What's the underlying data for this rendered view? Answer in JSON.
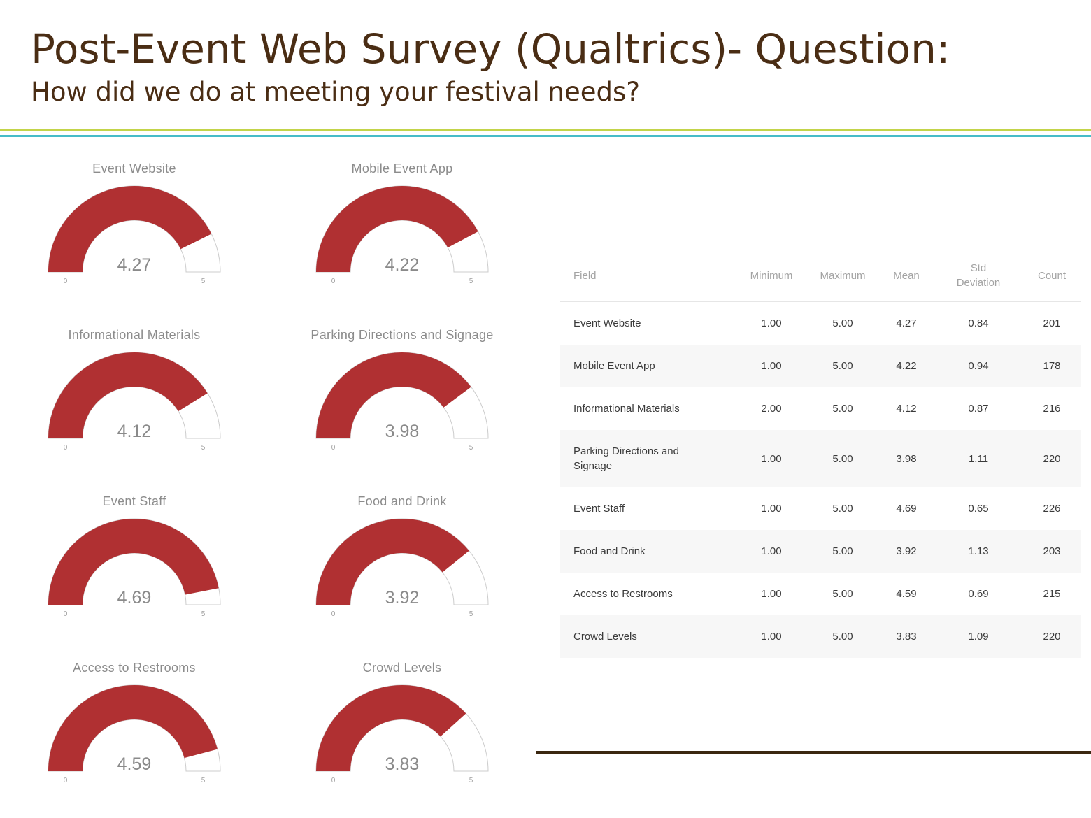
{
  "header": {
    "title": "Post-Event Web Survey (Qualtrics)- Question:",
    "subtitle": "How did we do at meeting your festival needs?"
  },
  "colors": {
    "gauge_fill": "#b03032",
    "gauge_track_stroke": "#cccccc",
    "title_text": "#4a2d14",
    "rule_green": "#c3d449",
    "rule_teal": "#47bcc8"
  },
  "chart_data": [
    {
      "type": "gauge",
      "gauges": [
        {
          "name": "Event Website",
          "value": 4.27,
          "min": 0,
          "max": 5,
          "value_label": "4.27",
          "min_label": "0",
          "max_label": "5"
        },
        {
          "name": "Mobile Event App",
          "value": 4.22,
          "min": 0,
          "max": 5,
          "value_label": "4.22",
          "min_label": "0",
          "max_label": "5"
        },
        {
          "name": "Informational Materials",
          "value": 4.12,
          "min": 0,
          "max": 5,
          "value_label": "4.12",
          "min_label": "0",
          "max_label": "5"
        },
        {
          "name": "Parking Directions and Signage",
          "value": 3.98,
          "min": 0,
          "max": 5,
          "value_label": "3.98",
          "min_label": "0",
          "max_label": "5"
        },
        {
          "name": "Event Staff",
          "value": 4.69,
          "min": 0,
          "max": 5,
          "value_label": "4.69",
          "min_label": "0",
          "max_label": "5"
        },
        {
          "name": "Food and Drink",
          "value": 3.92,
          "min": 0,
          "max": 5,
          "value_label": "3.92",
          "min_label": "0",
          "max_label": "5"
        },
        {
          "name": "Access to Restrooms",
          "value": 4.59,
          "min": 0,
          "max": 5,
          "value_label": "4.59",
          "min_label": "0",
          "max_label": "5"
        },
        {
          "name": "Crowd Levels",
          "value": 3.83,
          "min": 0,
          "max": 5,
          "value_label": "3.83",
          "min_label": "0",
          "max_label": "5"
        }
      ]
    },
    {
      "type": "table",
      "columns": [
        "Field",
        "Minimum",
        "Maximum",
        "Mean",
        "Std Deviation",
        "Count"
      ],
      "rows": [
        {
          "field": "Event Website",
          "min": "1.00",
          "max": "5.00",
          "mean": "4.27",
          "std": "0.84",
          "count": "201"
        },
        {
          "field": "Mobile Event App",
          "min": "1.00",
          "max": "5.00",
          "mean": "4.22",
          "std": "0.94",
          "count": "178"
        },
        {
          "field": "Informational Materials",
          "min": "2.00",
          "max": "5.00",
          "mean": "4.12",
          "std": "0.87",
          "count": "216"
        },
        {
          "field": "Parking Directions and Signage",
          "min": "1.00",
          "max": "5.00",
          "mean": "3.98",
          "std": "1.11",
          "count": "220"
        },
        {
          "field": "Event Staff",
          "min": "1.00",
          "max": "5.00",
          "mean": "4.69",
          "std": "0.65",
          "count": "226"
        },
        {
          "field": "Food and Drink",
          "min": "1.00",
          "max": "5.00",
          "mean": "3.92",
          "std": "1.13",
          "count": "203"
        },
        {
          "field": "Access to Restrooms",
          "min": "1.00",
          "max": "5.00",
          "mean": "4.59",
          "std": "0.69",
          "count": "215"
        },
        {
          "field": "Crowd Levels",
          "min": "1.00",
          "max": "5.00",
          "mean": "3.83",
          "std": "1.09",
          "count": "220"
        }
      ]
    }
  ]
}
